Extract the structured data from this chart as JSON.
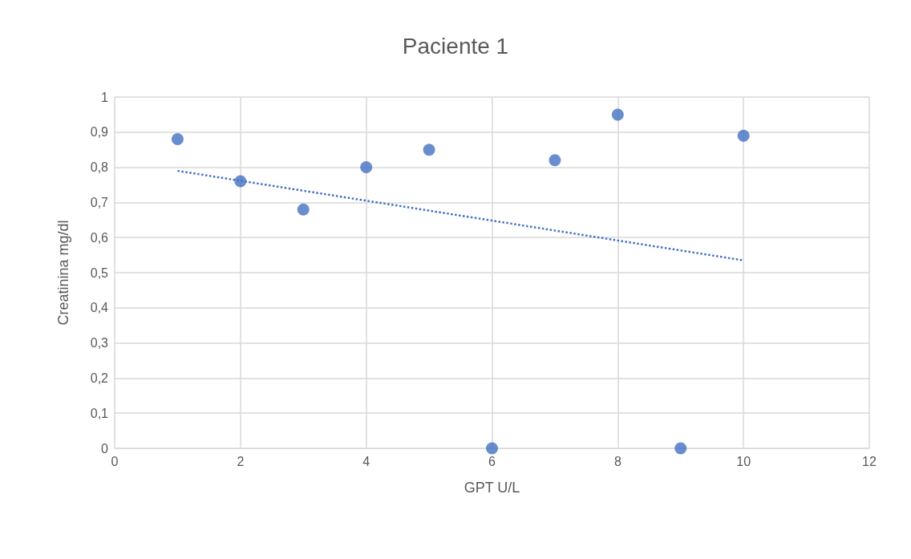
{
  "chart_data": {
    "type": "scatter",
    "title": "Paciente 1",
    "xlabel": "GPT U/L",
    "ylabel": "Creatinina mg/dl",
    "xlim": [
      0,
      12
    ],
    "xticks": [
      0,
      2,
      4,
      6,
      8,
      10,
      12
    ],
    "ylim": [
      0,
      1
    ],
    "yticks": [
      0,
      {
        "value": 0.1,
        "label": "0,1"
      },
      {
        "value": 0.2,
        "label": "0,2"
      },
      {
        "value": 0.3,
        "label": "0,3"
      },
      {
        "value": 0.4,
        "label": "0,4"
      },
      {
        "value": 0.5,
        "label": "0,5"
      },
      {
        "value": 0.6,
        "label": "0,6"
      },
      {
        "value": 0.7,
        "label": "0,7"
      },
      {
        "value": 0.8,
        "label": "0,8"
      },
      {
        "value": 0.9,
        "label": "0,9"
      },
      1
    ],
    "grid": true,
    "marker": "circle",
    "series": [
      {
        "color": "#4472c4",
        "x": [
          1,
          2,
          3,
          4,
          5,
          6,
          7,
          8,
          9,
          10
        ],
        "values": [
          0.88,
          0.76,
          0.68,
          0.8,
          0.85,
          0,
          0.82,
          0.95,
          0,
          0.89
        ]
      },
      {
        "type": "line",
        "color": "#4472c4",
        "line_style": "dotted",
        "marker": "none",
        "x": [
          1,
          10
        ],
        "values": [
          0.79,
          0.535
        ]
      }
    ]
  }
}
